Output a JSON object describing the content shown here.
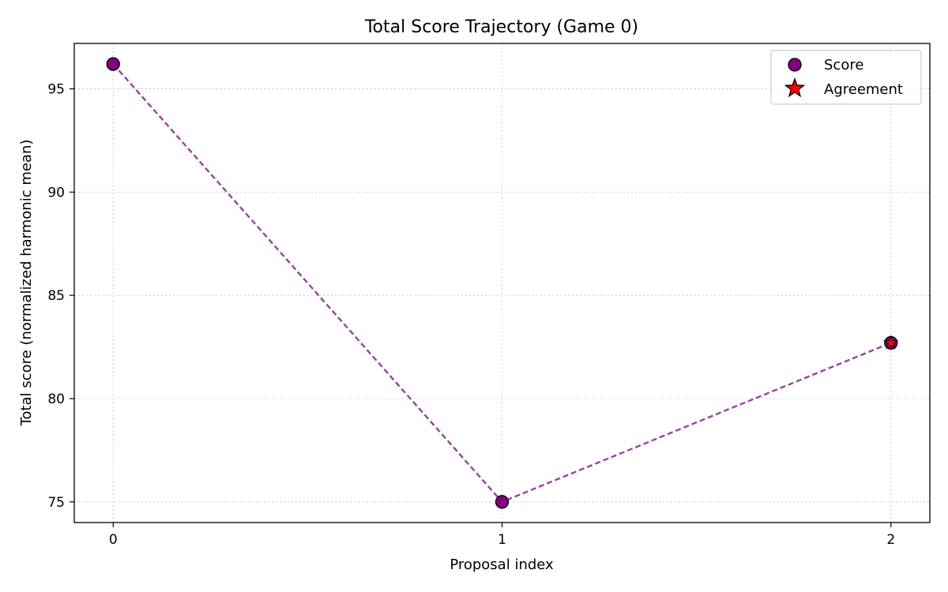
{
  "chart_data": {
    "type": "line",
    "title": "Total Score Trajectory (Game 0)",
    "xlabel": "Proposal index",
    "ylabel": "Total score (normalized harmonic mean)",
    "x": [
      0,
      1,
      2
    ],
    "xticks": [
      "0",
      "1",
      "2"
    ],
    "yticks": [
      "75",
      "80",
      "85",
      "90",
      "95"
    ],
    "xlim": [
      -0.1,
      2.1
    ],
    "ylim": [
      74.0,
      97.2
    ],
    "grid": true,
    "legend_position": "top-right",
    "series": [
      {
        "name": "Score",
        "values": [
          96.2,
          75.0,
          82.7
        ],
        "color": "#800080",
        "line_color": "#9b3fa0",
        "line_style": "dashed",
        "marker": "circle"
      }
    ],
    "agreement": {
      "name": "Agreement",
      "x": 2,
      "y": 82.7,
      "color": "#ff0000",
      "marker": "star"
    }
  }
}
